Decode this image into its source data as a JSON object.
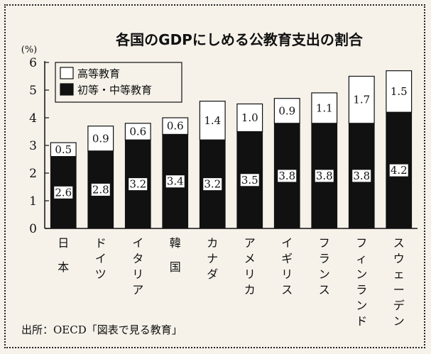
{
  "chart_data": {
    "type": "bar",
    "stacked": true,
    "title": "各国のGDPにしめる公教育支出の割合",
    "ylabel": "(%)",
    "ylim": [
      0,
      6
    ],
    "yticks": [
      "0",
      "1",
      "2",
      "3",
      "4",
      "5",
      "6"
    ],
    "categories": [
      "日本",
      "ドイツ",
      "イタリア",
      "韓国",
      "カナダ",
      "アメリカ",
      "イギリス",
      "フランス",
      "フィンランド",
      "スウェーデン"
    ],
    "series": [
      {
        "name": "初等・中等教育",
        "color": "#111111",
        "values": [
          2.6,
          2.8,
          3.2,
          3.4,
          3.2,
          3.5,
          3.8,
          3.8,
          3.8,
          4.2
        ],
        "labels": [
          "2.6",
          "2.8",
          "3.2",
          "3.4",
          "3.2",
          "3.5",
          "3.8",
          "3.8",
          "3.8",
          "4.2"
        ]
      },
      {
        "name": "高等教育",
        "color": "#ffffff",
        "values": [
          0.5,
          0.9,
          0.6,
          0.6,
          1.4,
          1.0,
          0.9,
          1.1,
          1.7,
          1.5
        ],
        "labels": [
          "0.5",
          "0.9",
          "0.6",
          "0.6",
          "1.4",
          "1.0",
          "0.9",
          "1.1",
          "1.7",
          "1.5"
        ]
      }
    ],
    "legend": {
      "position": "top-left",
      "items": [
        "高等教育",
        "初等・中等教育"
      ]
    },
    "grid": false
  },
  "source": "出所：OECD「図表で見る教育」"
}
